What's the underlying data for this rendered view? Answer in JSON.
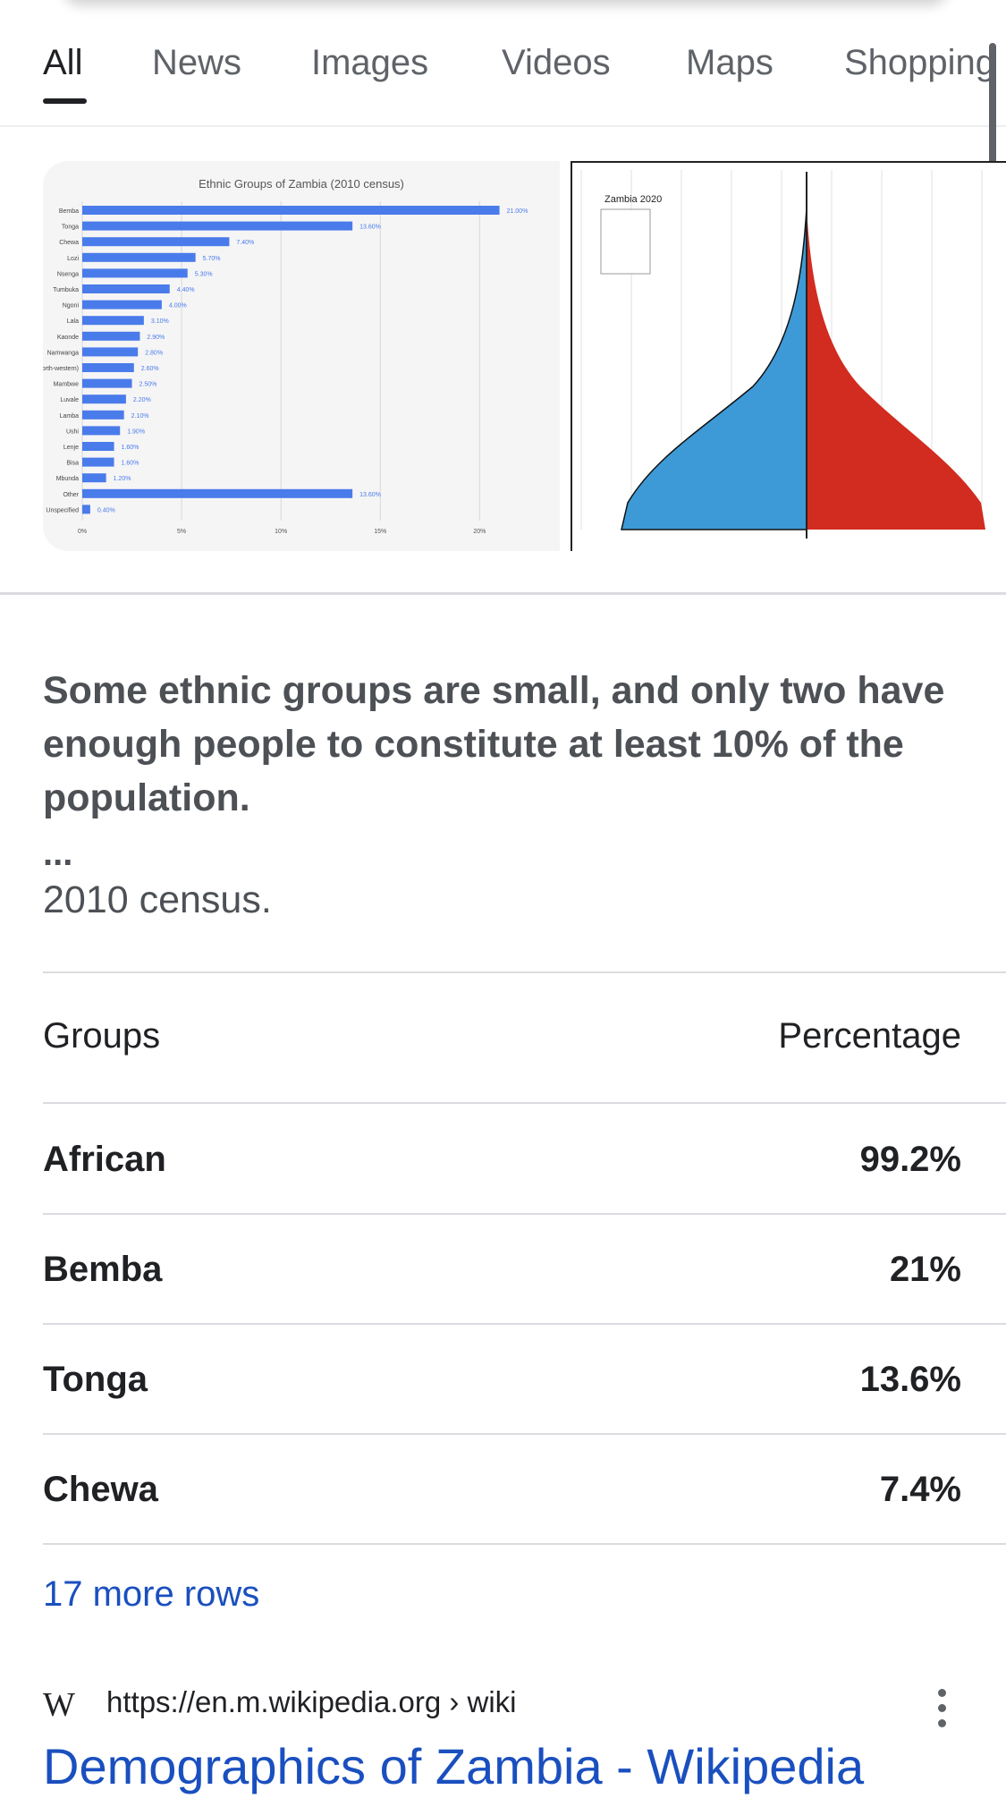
{
  "tabs": [
    {
      "label": "All",
      "active": true
    },
    {
      "label": "News"
    },
    {
      "label": "Images"
    },
    {
      "label": "Videos"
    },
    {
      "label": "Maps"
    },
    {
      "label": "Shopping"
    }
  ],
  "images": {
    "ethnic_chart": {
      "title": "Ethnic Groups of Zambia (2010 census)",
      "categories": [
        "Bemba",
        "Tonga",
        "Chewa",
        "Lozi",
        "Nsenga",
        "Tumbuka",
        "Ngoni",
        "Lala",
        "Kaonde",
        "Namwanga",
        "Lunda (North-western)",
        "Mambwe",
        "Luvale",
        "Lamba",
        "Ushi",
        "Lenje",
        "Bisa",
        "Mbunda",
        "Other",
        "Unspecified"
      ],
      "values": [
        21.0,
        13.6,
        7.4,
        5.7,
        5.3,
        4.4,
        4.0,
        3.1,
        2.9,
        2.8,
        2.6,
        2.5,
        2.2,
        2.1,
        1.9,
        1.6,
        1.6,
        1.2,
        13.6,
        0.4
      ],
      "labels": [
        "21.00%",
        "13.60%",
        "7.40%",
        "5.70%",
        "5.30%",
        "4.40%",
        "4.00%",
        "3.10%",
        "2.90%",
        "2.80%",
        "2.60%",
        "2.50%",
        "2.20%",
        "2.10%",
        "1.90%",
        "1.60%",
        "1.60%",
        "1.20%",
        "13.60%",
        "0.40%"
      ],
      "xticks": [
        "0%",
        "5%",
        "10%",
        "15%",
        "20%"
      ],
      "xlim": [
        0,
        23
      ],
      "bar_color": "#4a7bea"
    },
    "pyramid": {
      "title": "Zambia 2020",
      "male_color": "#3d9ad6",
      "female_color": "#d22b1f"
    }
  },
  "snippet": {
    "text": "Some ethnic groups are small, and only two have enough people to constitute at least 10% of the population.",
    "ellipsis": "...",
    "census": "2010 census."
  },
  "table": {
    "headers": {
      "group": "Groups",
      "percentage": "Percentage"
    },
    "rows": [
      {
        "group": "African",
        "percentage": "99.2%"
      },
      {
        "group": "Bemba",
        "percentage": "21%"
      },
      {
        "group": "Tonga",
        "percentage": "13.6%"
      },
      {
        "group": "Chewa",
        "percentage": "7.4%"
      }
    ],
    "more": "17 more rows"
  },
  "result": {
    "logo": "W",
    "url": "https://en.m.wikipedia.org › wiki",
    "title": "Demographics of Zambia - Wikipedia"
  },
  "colors": {
    "link": "#1a4fbf",
    "snippet_text": "#4d5156"
  }
}
